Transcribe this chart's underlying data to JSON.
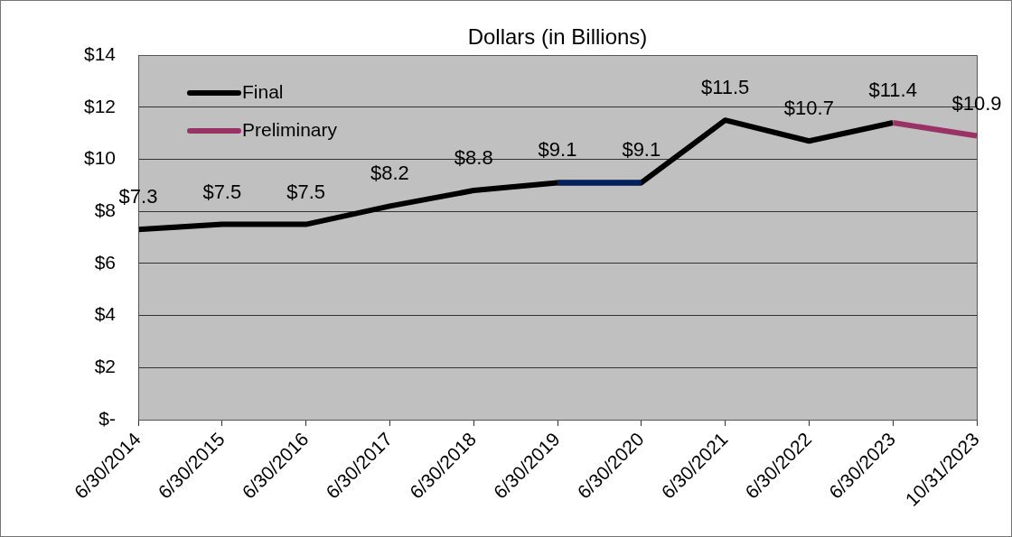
{
  "chart_data": {
    "type": "line",
    "title": "Dollars (in Billions)",
    "categories": [
      "6/30/2014",
      "6/30/2015",
      "6/30/2016",
      "6/30/2017",
      "6/30/2018",
      "6/30/2019",
      "6/30/2020",
      "6/30/2021",
      "6/30/2022",
      "6/30/2023",
      "10/31/2023"
    ],
    "series": [
      {
        "name": "Final",
        "color": "#000000",
        "values": [
          7.3,
          7.5,
          7.5,
          8.2,
          8.8,
          9.1,
          9.1,
          11.5,
          10.7,
          11.4,
          null
        ],
        "value_labels": [
          "$7.3",
          "$7.5",
          "$7.5",
          "$8.2",
          "$8.8",
          "$9.1",
          "$9.1",
          "$11.5",
          "$10.7",
          "$11.4",
          null
        ]
      },
      {
        "color": "#002060",
        "values": [
          null,
          null,
          null,
          null,
          null,
          9.1,
          9.1,
          null,
          null,
          null,
          null
        ]
      },
      {
        "name": "Preliminary",
        "color": "#993366",
        "values": [
          null,
          null,
          null,
          null,
          null,
          null,
          null,
          null,
          null,
          11.4,
          10.9
        ],
        "value_labels": [
          null,
          null,
          null,
          null,
          null,
          null,
          null,
          null,
          null,
          null,
          "$10.9"
        ]
      }
    ],
    "ylim": [
      0,
      14
    ],
    "yticks": [
      {
        "value": 0,
        "label": "$-"
      },
      {
        "value": 2,
        "label": "$2"
      },
      {
        "value": 4,
        "label": "$4"
      },
      {
        "value": 6,
        "label": "$6"
      },
      {
        "value": 8,
        "label": "$8"
      },
      {
        "value": 10,
        "label": "$10"
      },
      {
        "value": 12,
        "label": "$12"
      },
      {
        "value": 14,
        "label": "$14"
      }
    ],
    "grid": "y",
    "legend": "top left",
    "marker": "none",
    "line_style": "solid"
  }
}
